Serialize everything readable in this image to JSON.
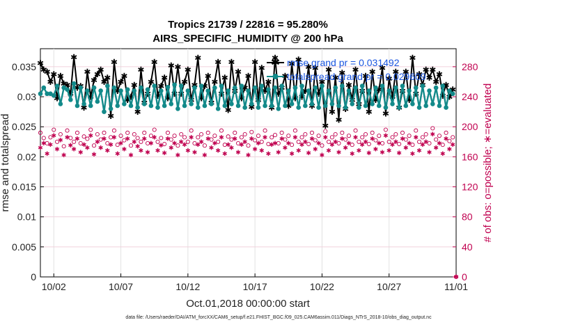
{
  "chart_data": {
    "type": "line",
    "title_line1": "Tropics 21739 / 22816 = 95.280%",
    "title_line2": "AIRS_SPECIFIC_HUMIDITY @ 200 hPa",
    "ylabel_left": "rmse and totalspread",
    "ylabel_right": "# of obs: o=possible; ∗=evaluated",
    "xlabel": "Oct.01,2018 00:00:00 start",
    "footnote": "data file: /Users/raeder/DAI/ATM_forcXX/CAM6_setup/f.e21.FHIST_BGC.f09_025.CAM6assim.011/Diags_NTrS_2018-10/obs_diag_output.nc",
    "x_range": [
      1,
      32
    ],
    "x_ticks": [
      {
        "value": 2,
        "label": "10/02"
      },
      {
        "value": 7,
        "label": "10/07"
      },
      {
        "value": 12,
        "label": "10/12"
      },
      {
        "value": 17,
        "label": "10/17"
      },
      {
        "value": 22,
        "label": "10/22"
      },
      {
        "value": 27,
        "label": "10/27"
      },
      {
        "value": 32,
        "label": "11/01"
      }
    ],
    "y_left_range": [
      0,
      0.038
    ],
    "y_left_ticks": [
      "0",
      "0.005",
      "0.01",
      "0.015",
      "0.02",
      "0.025",
      "0.03",
      "0.035"
    ],
    "y_left_tick_values": [
      0,
      0.005,
      0.01,
      0.015,
      0.02,
      0.025,
      0.03,
      0.035
    ],
    "y_right_range": [
      0,
      304
    ],
    "y_right_ticks": [
      "0",
      "40",
      "80",
      "120",
      "160",
      "200",
      "240",
      "280"
    ],
    "y_right_tick_values": [
      0,
      40,
      80,
      120,
      160,
      200,
      240,
      280
    ],
    "grid": true,
    "legend_position": "top-right",
    "colors": {
      "rmse": "#000000",
      "spread": "#138a8a",
      "obs": "#c0004f",
      "legend_text": "#1a55e0"
    },
    "series": [
      {
        "name": "rmse grand pr = 0.031492",
        "x": [
          1.0,
          1.25,
          1.5,
          1.75,
          2.0,
          2.25,
          2.5,
          2.75,
          3.0,
          3.25,
          3.5,
          3.75,
          4.0,
          4.25,
          4.5,
          4.75,
          5.0,
          5.25,
          5.5,
          5.75,
          6.0,
          6.25,
          6.5,
          6.75,
          7.0,
          7.25,
          7.5,
          7.75,
          8.0,
          8.25,
          8.5,
          8.75,
          9.0,
          9.25,
          9.5,
          9.75,
          10.0,
          10.25,
          10.5,
          10.75,
          11.0,
          11.25,
          11.5,
          11.75,
          12.0,
          12.25,
          12.5,
          12.75,
          13.0,
          13.25,
          13.5,
          13.75,
          14.0,
          14.25,
          14.5,
          14.75,
          15.0,
          15.25,
          15.5,
          15.75,
          16.0,
          16.25,
          16.5,
          16.75,
          17.0,
          17.25,
          17.5,
          17.75,
          18.0,
          18.25,
          18.5,
          18.75,
          19.0,
          19.25,
          19.5,
          19.75,
          20.0,
          20.25,
          20.5,
          20.75,
          21.0,
          21.25,
          21.5,
          21.75,
          22.0,
          22.25,
          22.5,
          22.75,
          23.0,
          23.25,
          23.5,
          23.75,
          24.0,
          24.25,
          24.5,
          24.75,
          25.0,
          25.25,
          25.5,
          25.75,
          26.0,
          26.25,
          26.5,
          26.75,
          27.0,
          27.25,
          27.5,
          27.75,
          28.0,
          28.25,
          28.5,
          28.75,
          29.0,
          29.25,
          29.5,
          29.75,
          30.0,
          30.25,
          30.5,
          30.75,
          31.0,
          31.25,
          31.5,
          31.75
        ],
        "values": [
          0.0356,
          0.0345,
          0.0342,
          0.0325,
          0.0338,
          0.0298,
          0.0335,
          0.0322,
          0.032,
          0.0305,
          0.0366,
          0.0315,
          0.0318,
          0.0282,
          0.0342,
          0.03,
          0.0328,
          0.0338,
          0.0345,
          0.0325,
          0.0332,
          0.0268,
          0.0358,
          0.031,
          0.0325,
          0.0335,
          0.0295,
          0.03,
          0.032,
          0.0275,
          0.0345,
          0.029,
          0.0305,
          0.0325,
          0.0358,
          0.0302,
          0.0318,
          0.0332,
          0.0298,
          0.0352,
          0.0305,
          0.035,
          0.0305,
          0.0325,
          0.0345,
          0.0295,
          0.032,
          0.0365,
          0.0298,
          0.0318,
          0.0335,
          0.029,
          0.0325,
          0.0358,
          0.0305,
          0.0332,
          0.0278,
          0.0358,
          0.031,
          0.0342,
          0.0298,
          0.0315,
          0.0335,
          0.0283,
          0.0358,
          0.0295,
          0.0348,
          0.031,
          0.0325,
          0.0282,
          0.0365,
          0.0305,
          0.0315,
          0.0335,
          0.0285,
          0.0355,
          0.0298,
          0.0362,
          0.03,
          0.031,
          0.035,
          0.0285,
          0.0348,
          0.0305,
          0.0325,
          0.0252,
          0.0345,
          0.0275,
          0.0332,
          0.0262,
          0.034,
          0.028,
          0.032,
          0.0295,
          0.0345,
          0.0288,
          0.031,
          0.0335,
          0.0275,
          0.0342,
          0.0295,
          0.0312,
          0.0348,
          0.0272,
          0.033,
          0.03,
          0.0342,
          0.0282,
          0.031,
          0.0342,
          0.0295,
          0.0365,
          0.0305,
          0.0338,
          0.032,
          0.0345,
          0.0332,
          0.0345,
          0.0325,
          0.0338,
          0.0302,
          0.032,
          0.03,
          0.0312
        ]
      },
      {
        "name": "totalspread grand pr = 0.029609",
        "x": [
          1.0,
          1.25,
          1.5,
          1.75,
          2.0,
          2.25,
          2.5,
          2.75,
          3.0,
          3.25,
          3.5,
          3.75,
          4.0,
          4.25,
          4.5,
          4.75,
          5.0,
          5.25,
          5.5,
          5.75,
          6.0,
          6.25,
          6.5,
          6.75,
          7.0,
          7.25,
          7.5,
          7.75,
          8.0,
          8.25,
          8.5,
          8.75,
          9.0,
          9.25,
          9.5,
          9.75,
          10.0,
          10.25,
          10.5,
          10.75,
          11.0,
          11.25,
          11.5,
          11.75,
          12.0,
          12.25,
          12.5,
          12.75,
          13.0,
          13.25,
          13.5,
          13.75,
          14.0,
          14.25,
          14.5,
          14.75,
          15.0,
          15.25,
          15.5,
          15.75,
          16.0,
          16.25,
          16.5,
          16.75,
          17.0,
          17.25,
          17.5,
          17.75,
          18.0,
          18.25,
          18.5,
          18.75,
          19.0,
          19.25,
          19.5,
          19.75,
          20.0,
          20.25,
          20.5,
          20.75,
          21.0,
          21.25,
          21.5,
          21.75,
          22.0,
          22.25,
          22.5,
          22.75,
          23.0,
          23.25,
          23.5,
          23.75,
          24.0,
          24.25,
          24.5,
          24.75,
          25.0,
          25.25,
          25.5,
          25.75,
          26.0,
          26.25,
          26.5,
          26.75,
          27.0,
          27.25,
          27.5,
          27.75,
          28.0,
          28.25,
          28.5,
          28.75,
          29.0,
          29.25,
          29.5,
          29.75,
          30.0,
          30.25,
          30.5,
          30.75,
          31.0,
          31.25,
          31.5,
          31.75
        ],
        "values": [
          0.0305,
          0.0315,
          0.0305,
          0.0305,
          0.0302,
          0.0318,
          0.0288,
          0.0315,
          0.0312,
          0.0295,
          0.0322,
          0.0285,
          0.0315,
          0.0288,
          0.031,
          0.0285,
          0.0315,
          0.0292,
          0.031,
          0.0275,
          0.0318,
          0.028,
          0.0315,
          0.0285,
          0.031,
          0.0288,
          0.0312,
          0.0285,
          0.031,
          0.0282,
          0.0315,
          0.0288,
          0.0312,
          0.0285,
          0.0318,
          0.0282,
          0.031,
          0.0285,
          0.0316,
          0.0288,
          0.032,
          0.028,
          0.0318,
          0.0285,
          0.031,
          0.0288,
          0.0315,
          0.0282,
          0.0318,
          0.0285,
          0.031,
          0.0288,
          0.0315,
          0.028,
          0.0318,
          0.0285,
          0.031,
          0.0288,
          0.0315,
          0.0285,
          0.0318,
          0.0282,
          0.031,
          0.0288,
          0.0315,
          0.0282,
          0.0318,
          0.0285,
          0.0312,
          0.0285,
          0.0315,
          0.028,
          0.0318,
          0.0285,
          0.031,
          0.0288,
          0.0315,
          0.0282,
          0.0318,
          0.0285,
          0.031,
          0.0288,
          0.0315,
          0.0282,
          0.0318,
          0.0285,
          0.031,
          0.0288,
          0.0315,
          0.0285,
          0.0318,
          0.0282,
          0.031,
          0.0288,
          0.0315,
          0.0282,
          0.0318,
          0.0285,
          0.031,
          0.0288,
          0.0315,
          0.0285,
          0.0318,
          0.0282,
          0.031,
          0.0288,
          0.0315,
          0.0282,
          0.0318,
          0.0285,
          0.031,
          0.0288,
          0.0315,
          0.0282,
          0.0318,
          0.0285,
          0.031,
          0.0288,
          0.0315,
          0.0285,
          0.0318,
          0.0282,
          0.031,
          0.0305
        ]
      },
      {
        "name": "possible obs (o)",
        "axis": "right",
        "marker": "circle",
        "x": [
          1.0,
          1.25,
          1.5,
          1.75,
          2.0,
          2.25,
          2.5,
          2.75,
          3.0,
          3.25,
          3.5,
          3.75,
          4.0,
          4.25,
          4.5,
          4.75,
          5.0,
          5.25,
          5.5,
          5.75,
          6.0,
          6.25,
          6.5,
          6.75,
          7.0,
          7.25,
          7.5,
          7.75,
          8.0,
          8.25,
          8.5,
          8.75,
          9.0,
          9.25,
          9.5,
          9.75,
          10.0,
          10.25,
          10.5,
          10.75,
          11.0,
          11.25,
          11.5,
          11.75,
          12.0,
          12.25,
          12.5,
          12.75,
          13.0,
          13.25,
          13.5,
          13.75,
          14.0,
          14.25,
          14.5,
          14.75,
          15.0,
          15.25,
          15.5,
          15.75,
          16.0,
          16.25,
          16.5,
          16.75,
          17.0,
          17.25,
          17.5,
          17.75,
          18.0,
          18.25,
          18.5,
          18.75,
          19.0,
          19.25,
          19.5,
          19.75,
          20.0,
          20.25,
          20.5,
          20.75,
          21.0,
          21.25,
          21.5,
          21.75,
          22.0,
          22.25,
          22.5,
          22.75,
          23.0,
          23.25,
          23.5,
          23.75,
          24.0,
          24.25,
          24.5,
          24.75,
          25.0,
          25.25,
          25.5,
          25.75,
          26.0,
          26.25,
          26.5,
          26.75,
          27.0,
          27.25,
          27.5,
          27.75,
          28.0,
          28.25,
          28.5,
          28.75,
          29.0,
          29.25,
          29.5,
          29.75,
          30.0,
          30.25,
          30.5,
          30.75,
          31.0,
          31.25,
          31.5,
          31.75,
          32.0
        ],
        "values": [
          192,
          185,
          178,
          186,
          196,
          180,
          190,
          174,
          195,
          185,
          180,
          192,
          178,
          187,
          184,
          196,
          175,
          190,
          183,
          192,
          178,
          186,
          195,
          176,
          188,
          182,
          192,
          175,
          190,
          185,
          180,
          192,
          178,
          188,
          196,
          180,
          185,
          177,
          192,
          183,
          188,
          175,
          190,
          186,
          180,
          195,
          178,
          186,
          190,
          175,
          192,
          183,
          188,
          180,
          195,
          176,
          187,
          183,
          192,
          178,
          186,
          190,
          175,
          193,
          182,
          188,
          180,
          195,
          177,
          186,
          189,
          178,
          192,
          183,
          188,
          176,
          195,
          180,
          186,
          190,
          177,
          192,
          182,
          188,
          175,
          194,
          180,
          186,
          190,
          178,
          192,
          183,
          188,
          176,
          195,
          180,
          186,
          190,
          177,
          192,
          182,
          188,
          178,
          196,
          180,
          186,
          190,
          177,
          192,
          183,
          188,
          176,
          195,
          180,
          186,
          190,
          178,
          198,
          183,
          188,
          176,
          192,
          181,
          186,
          0
        ]
      },
      {
        "name": "evaluated obs (∗)",
        "axis": "right",
        "marker": "asterisk",
        "x": [
          1.0,
          1.25,
          1.5,
          1.75,
          2.0,
          2.25,
          2.5,
          2.75,
          3.0,
          3.25,
          3.5,
          3.75,
          4.0,
          4.25,
          4.5,
          4.75,
          5.0,
          5.25,
          5.5,
          5.75,
          6.0,
          6.25,
          6.5,
          6.75,
          7.0,
          7.25,
          7.5,
          7.75,
          8.0,
          8.25,
          8.5,
          8.75,
          9.0,
          9.25,
          9.5,
          9.75,
          10.0,
          10.25,
          10.5,
          10.75,
          11.0,
          11.25,
          11.5,
          11.75,
          12.0,
          12.25,
          12.5,
          12.75,
          13.0,
          13.25,
          13.5,
          13.75,
          14.0,
          14.25,
          14.5,
          14.75,
          15.0,
          15.25,
          15.5,
          15.75,
          16.0,
          16.25,
          16.5,
          16.75,
          17.0,
          17.25,
          17.5,
          17.75,
          18.0,
          18.25,
          18.5,
          18.75,
          19.0,
          19.25,
          19.5,
          19.75,
          20.0,
          20.25,
          20.5,
          20.75,
          21.0,
          21.25,
          21.5,
          21.75,
          22.0,
          22.25,
          22.5,
          22.75,
          23.0,
          23.25,
          23.5,
          23.75,
          24.0,
          24.25,
          24.5,
          24.75,
          25.0,
          25.25,
          25.5,
          25.75,
          26.0,
          26.25,
          26.5,
          26.75,
          27.0,
          27.25,
          27.5,
          27.75,
          28.0,
          28.25,
          28.5,
          28.75,
          29.0,
          29.25,
          29.5,
          29.75,
          30.0,
          30.25,
          30.5,
          30.75,
          31.0,
          31.25,
          31.5,
          31.75,
          32.0
        ],
        "values": [
          172,
          178,
          164,
          176,
          188,
          170,
          182,
          162,
          186,
          175,
          170,
          184,
          166,
          176,
          172,
          188,
          163,
          180,
          172,
          184,
          168,
          176,
          186,
          164,
          178,
          170,
          184,
          162,
          180,
          174,
          168,
          184,
          166,
          178,
          186,
          168,
          175,
          165,
          184,
          172,
          178,
          162,
          180,
          176,
          168,
          186,
          166,
          176,
          180,
          162,
          184,
          172,
          178,
          168,
          186,
          164,
          176,
          172,
          184,
          166,
          176,
          180,
          162,
          184,
          170,
          178,
          168,
          186,
          164,
          176,
          178,
          166,
          184,
          172,
          178,
          164,
          186,
          168,
          176,
          180,
          165,
          184,
          170,
          178,
          162,
          186,
          168,
          176,
          180,
          166,
          184,
          172,
          178,
          164,
          186,
          168,
          176,
          180,
          165,
          184,
          170,
          178,
          166,
          188,
          168,
          176,
          180,
          165,
          184,
          172,
          178,
          164,
          186,
          168,
          176,
          180,
          166,
          190,
          172,
          178,
          164,
          184,
          170,
          176,
          0
        ]
      }
    ]
  }
}
